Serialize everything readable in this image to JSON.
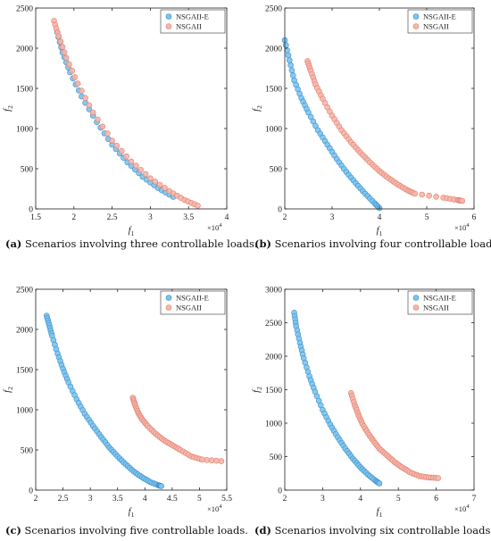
{
  "colors": {
    "nsgaii_e_fill": "#7cc3ee",
    "nsgaii_e_stroke": "#3c8fc9",
    "nsgaii_fill": "#f6b6a8",
    "nsgaii_stroke": "#e07f70"
  },
  "captions": [
    {
      "tag": "(a)",
      "text": " Scenarios involving three controllable loads."
    },
    {
      "tag": "(b)",
      "text": " Scenarios involving four controllable loads."
    },
    {
      "tag": "(c)",
      "text": " Scenarios involving five controllable loads."
    },
    {
      "tag": "(d)",
      "text": " Scenarios involving six controllable loads."
    }
  ],
  "chart_data": [
    {
      "type": "scatter",
      "xlabel": "f1",
      "ylabel": "f2",
      "x_exponent_label": "×10^4",
      "xlim": [
        15000,
        40000
      ],
      "ylim": [
        0,
        2500
      ],
      "xticks": [
        15000,
        20000,
        25000,
        30000,
        35000,
        40000
      ],
      "xtick_labels": [
        "1.5",
        "2",
        "2.5",
        "3",
        "3.5",
        "4"
      ],
      "yticks": [
        0,
        500,
        1000,
        1500,
        2000,
        2500
      ],
      "ytick_labels": [
        "0",
        "500",
        "1000",
        "1500",
        "2000",
        "2500"
      ],
      "legend": "top-right",
      "series": [
        {
          "name": "NSGAII-E",
          "x": [
            17800,
            18500,
            19500,
            21000,
            23000,
            25000,
            27000,
            29000,
            31000,
            33000
          ],
          "y": [
            2200,
            1950,
            1700,
            1400,
            1080,
            800,
            580,
            400,
            260,
            150
          ]
        },
        {
          "name": "NSGAII",
          "x": [
            17400,
            18000,
            19000,
            20500,
            22500,
            25000,
            27500,
            30000,
            32500,
            34500,
            36200
          ],
          "y": [
            2340,
            2150,
            1880,
            1560,
            1200,
            850,
            590,
            380,
            220,
            110,
            40
          ]
        }
      ]
    },
    {
      "type": "scatter",
      "xlabel": "f1",
      "ylabel": "f2",
      "x_exponent_label": "×10^4",
      "xlim": [
        20000,
        60000
      ],
      "ylim": [
        0,
        2500
      ],
      "xticks": [
        20000,
        30000,
        40000,
        50000,
        60000
      ],
      "xtick_labels": [
        "2",
        "3",
        "4",
        "5",
        "6"
      ],
      "yticks": [
        0,
        500,
        1000,
        1500,
        2000,
        2500
      ],
      "ytick_labels": [
        "0",
        "500",
        "1000",
        "1500",
        "2000",
        "2500"
      ],
      "legend": "top-right",
      "series": [
        {
          "name": "NSGAII-E",
          "x": [
            20000,
            21000,
            22000,
            23500,
            25000,
            27000,
            29000,
            31000,
            33000,
            35000,
            37000,
            39000,
            40000
          ],
          "y": [
            2100,
            1850,
            1600,
            1380,
            1200,
            980,
            800,
            620,
            460,
            320,
            190,
            70,
            10
          ]
        },
        {
          "name": "NSGAII",
          "x": [
            24800,
            25500,
            26500,
            28000,
            30000,
            32000,
            34000,
            36000,
            38000,
            40000,
            42000,
            44000,
            46000,
            47500,
            53500,
            56500,
            57500
          ],
          "y": [
            1840,
            1720,
            1550,
            1370,
            1160,
            980,
            830,
            700,
            580,
            470,
            380,
            300,
            230,
            190,
            140,
            110,
            100
          ]
        }
      ]
    },
    {
      "type": "scatter",
      "xlabel": "f1",
      "ylabel": "f2",
      "x_exponent_label": "×10^4",
      "xlim": [
        20000,
        55000
      ],
      "ylim": [
        0,
        2500
      ],
      "xticks": [
        20000,
        25000,
        30000,
        35000,
        40000,
        45000,
        50000,
        55000
      ],
      "xtick_labels": [
        "2",
        "2.5",
        "3",
        "3.5",
        "4",
        "4.5",
        "5",
        "5.5"
      ],
      "yticks": [
        0,
        500,
        1000,
        1500,
        2000,
        2500
      ],
      "ytick_labels": [
        "0",
        "500",
        "1000",
        "1500",
        "2000",
        "2500"
      ],
      "legend": "top-right",
      "series": [
        {
          "name": "NSGAII-E",
          "x": [
            22000,
            22500,
            23000,
            24000,
            25000,
            26000,
            27500,
            29000,
            30500,
            32000,
            33500,
            35000,
            36500,
            38000,
            39500,
            41000,
            42500,
            43000
          ],
          "y": [
            2170,
            2050,
            1920,
            1700,
            1510,
            1340,
            1130,
            950,
            800,
            660,
            530,
            420,
            320,
            230,
            160,
            100,
            60,
            50
          ]
        },
        {
          "name": "NSGAII",
          "x": [
            37800,
            38200,
            38800,
            39500,
            40500,
            42000,
            43500,
            45000,
            46500,
            48500,
            50500,
            54000
          ],
          "y": [
            1150,
            1060,
            960,
            880,
            800,
            700,
            620,
            560,
            500,
            420,
            380,
            360
          ]
        }
      ]
    },
    {
      "type": "scatter",
      "xlabel": "f1",
      "ylabel": "f2",
      "x_exponent_label": "×10^4",
      "xlim": [
        20000,
        70000
      ],
      "ylim": [
        0,
        3000
      ],
      "xticks": [
        20000,
        30000,
        40000,
        50000,
        60000,
        70000
      ],
      "xtick_labels": [
        "2",
        "3",
        "4",
        "5",
        "6",
        "7"
      ],
      "yticks": [
        0,
        500,
        1000,
        1500,
        2000,
        2500,
        3000
      ],
      "ytick_labels": [
        "0",
        "500",
        "1000",
        "1500",
        "2000",
        "2500",
        "3000"
      ],
      "legend": "top-right",
      "series": [
        {
          "name": "NSGAII-E",
          "x": [
            22500,
            23000,
            24000,
            25000,
            26500,
            28000,
            30000,
            32000,
            34000,
            36000,
            38000,
            40000,
            42000,
            44000,
            45000
          ],
          "y": [
            2650,
            2450,
            2200,
            1970,
            1700,
            1470,
            1200,
            980,
            790,
            620,
            470,
            340,
            230,
            140,
            100
          ]
        },
        {
          "name": "NSGAII",
          "x": [
            37500,
            38500,
            39500,
            40500,
            42000,
            43500,
            45000,
            47000,
            49000,
            51000,
            53000,
            55500,
            58000,
            60500
          ],
          "y": [
            1450,
            1270,
            1120,
            990,
            850,
            730,
            620,
            520,
            420,
            340,
            270,
            210,
            190,
            180
          ]
        }
      ]
    }
  ]
}
